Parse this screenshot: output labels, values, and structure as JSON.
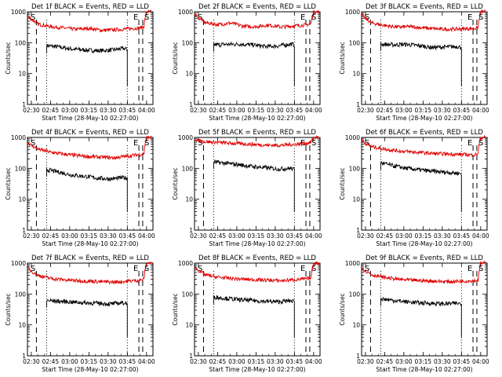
{
  "colors": {
    "events": "#000000",
    "lld": "#e00000",
    "axis": "#000000",
    "background": "#ffffff"
  },
  "chart_data": [
    {
      "type": "line",
      "title": "Det 1f BLACK = Events, RED = LLD",
      "xlabel": "Start Time (28-May-10 02:27:00)",
      "ylabel": "Counts/sec",
      "ylog": true,
      "ylim": [
        1,
        1000
      ],
      "xlim": [
        "02:27",
        "04:05"
      ],
      "xticks": [
        "02:30",
        "02:45",
        "03:00",
        "03:15",
        "03:30",
        "03:45",
        "04:00"
      ],
      "yticks": [
        "1",
        "10",
        "100",
        "1000"
      ],
      "marker_labels": [
        "S",
        "E",
        "S"
      ],
      "dashed_lines": [
        "02:34",
        "03:54",
        "03:57"
      ],
      "dotted_lines": [
        "02:42",
        "03:45"
      ],
      "series": [
        {
          "name": "BLACK = Events",
          "x": [
            "02:42",
            "02:52",
            "03:02",
            "03:12",
            "03:22",
            "03:32",
            "03:42",
            "03:45"
          ],
          "values": [
            80,
            72,
            62,
            58,
            55,
            57,
            65,
            60
          ]
        },
        {
          "name": "RED = LLD",
          "x": [
            "02:27",
            "02:30",
            "02:35",
            "02:45",
            "02:55",
            "03:05",
            "03:15",
            "03:25",
            "03:35",
            "03:45",
            "03:55",
            "03:58",
            "04:00",
            "04:04"
          ],
          "values": [
            700,
            580,
            400,
            330,
            300,
            270,
            290,
            250,
            260,
            280,
            300,
            330,
            1000,
            1000
          ]
        }
      ]
    },
    {
      "type": "line",
      "title": "Det 2f BLACK = Events, RED = LLD",
      "xlabel": "Start Time (28-May-10 02:27:00)",
      "ylabel": "Counts/sec",
      "ylog": true,
      "ylim": [
        1,
        1000
      ],
      "xlim": [
        "02:27",
        "04:05"
      ],
      "xticks": [
        "02:30",
        "02:45",
        "03:00",
        "03:15",
        "03:30",
        "03:45",
        "04:00"
      ],
      "yticks": [
        "1",
        "10",
        "100",
        "1000"
      ],
      "marker_labels": [
        "S",
        "E",
        "S"
      ],
      "dashed_lines": [
        "02:34",
        "03:54",
        "03:57"
      ],
      "dotted_lines": [
        "02:42",
        "03:45"
      ],
      "series": [
        {
          "name": "BLACK = Events",
          "x": [
            "02:42",
            "02:52",
            "03:02",
            "03:12",
            "03:22",
            "03:32",
            "03:42",
            "03:45"
          ],
          "values": [
            85,
            88,
            90,
            85,
            75,
            78,
            90,
            85
          ]
        },
        {
          "name": "RED = LLD",
          "x": [
            "02:27",
            "02:30",
            "02:35",
            "02:45",
            "02:55",
            "03:05",
            "03:15",
            "03:25",
            "03:35",
            "03:45",
            "03:55",
            "03:58",
            "04:00",
            "04:04"
          ],
          "values": [
            800,
            650,
            450,
            380,
            430,
            340,
            330,
            370,
            320,
            350,
            380,
            420,
            1000,
            1000
          ]
        }
      ]
    },
    {
      "type": "line",
      "title": "Det 3f BLACK = Events, RED = LLD",
      "xlabel": "Start Time (28-May-10 02:27:00)",
      "ylabel": "Counts/sec",
      "ylog": true,
      "ylim": [
        1,
        1000
      ],
      "xlim": [
        "02:27",
        "04:05"
      ],
      "xticks": [
        "02:30",
        "02:45",
        "03:00",
        "03:15",
        "03:30",
        "03:45",
        "04:00"
      ],
      "yticks": [
        "1",
        "10",
        "100",
        "1000"
      ],
      "marker_labels": [
        "S",
        "E",
        "S"
      ],
      "dashed_lines": [
        "02:34",
        "03:54",
        "03:57"
      ],
      "dotted_lines": [
        "02:42",
        "03:45"
      ],
      "series": [
        {
          "name": "BLACK = Events",
          "x": [
            "02:42",
            "02:52",
            "03:02",
            "03:12",
            "03:22",
            "03:32",
            "03:42",
            "03:45"
          ],
          "values": [
            90,
            85,
            88,
            80,
            70,
            72,
            75,
            70
          ]
        },
        {
          "name": "RED = LLD",
          "x": [
            "02:27",
            "02:30",
            "02:35",
            "02:45",
            "02:55",
            "03:05",
            "03:15",
            "03:25",
            "03:35",
            "03:45",
            "03:55",
            "03:58",
            "04:00",
            "04:04"
          ],
          "values": [
            800,
            600,
            430,
            360,
            320,
            330,
            300,
            280,
            270,
            280,
            290,
            300,
            1000,
            1000
          ]
        }
      ]
    },
    {
      "type": "line",
      "title": "Det 4f BLACK = Events, RED = LLD",
      "xlabel": "Start Time (28-May-10 02:27:00)",
      "ylabel": "Counts/sec",
      "ylog": true,
      "ylim": [
        1,
        1000
      ],
      "xlim": [
        "02:27",
        "04:05"
      ],
      "xticks": [
        "02:30",
        "02:45",
        "03:00",
        "03:15",
        "03:30",
        "03:45",
        "04:00"
      ],
      "yticks": [
        "1",
        "10",
        "100",
        "1000"
      ],
      "marker_labels": [
        "S",
        "E",
        "S"
      ],
      "dashed_lines": [
        "02:34",
        "03:54",
        "03:57"
      ],
      "dotted_lines": [
        "02:42",
        "03:45"
      ],
      "series": [
        {
          "name": "BLACK = Events",
          "x": [
            "02:42",
            "02:52",
            "03:02",
            "03:12",
            "03:22",
            "03:32",
            "03:42",
            "03:45"
          ],
          "values": [
            90,
            75,
            60,
            55,
            48,
            45,
            50,
            48
          ]
        },
        {
          "name": "RED = LLD",
          "x": [
            "02:27",
            "02:30",
            "02:35",
            "02:45",
            "02:55",
            "03:05",
            "03:15",
            "03:25",
            "03:35",
            "03:45",
            "03:55",
            "03:58",
            "04:00",
            "04:04"
          ],
          "values": [
            700,
            550,
            420,
            330,
            290,
            260,
            240,
            230,
            220,
            250,
            280,
            300,
            1000,
            1000
          ]
        }
      ]
    },
    {
      "type": "line",
      "title": "Det 5f BLACK = Events, RED = LLD",
      "xlabel": "Start Time (28-May-10 02:27:00)",
      "ylabel": "Counts/sec",
      "ylog": true,
      "ylim": [
        1,
        1000
      ],
      "xlim": [
        "02:27",
        "04:05"
      ],
      "xticks": [
        "02:30",
        "02:45",
        "03:00",
        "03:15",
        "03:30",
        "03:45",
        "04:00"
      ],
      "yticks": [
        "1",
        "10",
        "100",
        "1000"
      ],
      "marker_labels": [
        "S",
        "E",
        "S"
      ],
      "dashed_lines": [
        "02:34",
        "03:54",
        "03:57"
      ],
      "dotted_lines": [
        "02:42",
        "03:45"
      ],
      "series": [
        {
          "name": "BLACK = Events",
          "x": [
            "02:42",
            "02:52",
            "03:02",
            "03:12",
            "03:22",
            "03:32",
            "03:42",
            "03:45"
          ],
          "values": [
            160,
            145,
            130,
            115,
            105,
            95,
            100,
            90
          ]
        },
        {
          "name": "RED = LLD",
          "x": [
            "02:27",
            "02:30",
            "02:35",
            "02:45",
            "02:55",
            "03:05",
            "03:15",
            "03:25",
            "03:35",
            "03:45",
            "03:55",
            "03:58",
            "04:00",
            "04:04"
          ],
          "values": [
            900,
            800,
            730,
            690,
            650,
            620,
            590,
            560,
            560,
            600,
            650,
            700,
            1000,
            1000
          ]
        }
      ]
    },
    {
      "type": "line",
      "title": "Det 6f BLACK = Events, RED = LLD",
      "xlabel": "Start Time (28-May-10 02:27:00)",
      "ylabel": "Counts/sec",
      "ylog": true,
      "ylim": [
        1,
        1000
      ],
      "xlim": [
        "02:27",
        "04:05"
      ],
      "xticks": [
        "02:30",
        "02:45",
        "03:00",
        "03:15",
        "03:30",
        "03:45",
        "04:00"
      ],
      "yticks": [
        "1",
        "10",
        "100",
        "1000"
      ],
      "marker_labels": [
        "S",
        "E",
        "S"
      ],
      "dashed_lines": [
        "02:34",
        "03:54",
        "03:57"
      ],
      "dotted_lines": [
        "02:42",
        "03:45"
      ],
      "series": [
        {
          "name": "BLACK = Events",
          "x": [
            "02:42",
            "02:52",
            "03:02",
            "03:12",
            "03:22",
            "03:32",
            "03:42",
            "03:45"
          ],
          "values": [
            150,
            120,
            100,
            90,
            80,
            75,
            70,
            68
          ]
        },
        {
          "name": "RED = LLD",
          "x": [
            "02:27",
            "02:30",
            "02:35",
            "02:45",
            "02:55",
            "03:05",
            "03:15",
            "03:25",
            "03:35",
            "03:45",
            "03:55",
            "03:58",
            "04:00",
            "04:04"
          ],
          "values": [
            800,
            650,
            500,
            420,
            370,
            340,
            320,
            300,
            290,
            280,
            270,
            300,
            1000,
            1000
          ]
        }
      ]
    },
    {
      "type": "line",
      "title": "Det 7f BLACK = Events, RED = LLD",
      "xlabel": "Start Time (28-May-10 02:27:00)",
      "ylabel": "Counts/sec",
      "ylog": true,
      "ylim": [
        1,
        1000
      ],
      "xlim": [
        "02:27",
        "04:05"
      ],
      "xticks": [
        "02:30",
        "02:45",
        "03:00",
        "03:15",
        "03:30",
        "03:45",
        "04:00"
      ],
      "yticks": [
        "1",
        "10",
        "100",
        "1000"
      ],
      "marker_labels": [
        "S",
        "E",
        "S"
      ],
      "dashed_lines": [
        "02:34",
        "03:54",
        "03:57"
      ],
      "dotted_lines": [
        "02:42",
        "03:45"
      ],
      "series": [
        {
          "name": "BLACK = Events",
          "x": [
            "02:42",
            "02:52",
            "03:02",
            "03:12",
            "03:22",
            "03:32",
            "03:42",
            "03:45"
          ],
          "values": [
            62,
            58,
            55,
            52,
            50,
            48,
            52,
            50
          ]
        },
        {
          "name": "RED = LLD",
          "x": [
            "02:27",
            "02:30",
            "02:35",
            "02:45",
            "02:55",
            "03:05",
            "03:15",
            "03:25",
            "03:35",
            "03:45",
            "03:55",
            "03:58",
            "04:00",
            "04:04"
          ],
          "values": [
            700,
            550,
            400,
            320,
            290,
            270,
            260,
            250,
            240,
            260,
            280,
            300,
            1000,
            1000
          ]
        }
      ]
    },
    {
      "type": "line",
      "title": "Det 8f BLACK = Events, RED = LLD",
      "xlabel": "Start Time (28-May-10 02:27:00)",
      "ylabel": "Counts/sec",
      "ylog": true,
      "ylim": [
        1,
        1000
      ],
      "xlim": [
        "02:27",
        "04:05"
      ],
      "xticks": [
        "02:30",
        "02:45",
        "03:00",
        "03:15",
        "03:30",
        "03:45",
        "04:00"
      ],
      "yticks": [
        "1",
        "10",
        "100",
        "1000"
      ],
      "marker_labels": [
        "S",
        "E",
        "S"
      ],
      "dashed_lines": [
        "02:34",
        "03:54",
        "03:57"
      ],
      "dotted_lines": [
        "02:42",
        "03:45"
      ],
      "series": [
        {
          "name": "BLACK = Events",
          "x": [
            "02:42",
            "02:52",
            "03:02",
            "03:12",
            "03:22",
            "03:32",
            "03:42",
            "03:45"
          ],
          "values": [
            80,
            72,
            65,
            62,
            58,
            56,
            60,
            58
          ]
        },
        {
          "name": "RED = LLD",
          "x": [
            "02:27",
            "02:30",
            "02:35",
            "02:45",
            "02:55",
            "03:05",
            "03:15",
            "03:25",
            "03:35",
            "03:45",
            "03:55",
            "03:58",
            "04:00",
            "04:04"
          ],
          "values": [
            750,
            580,
            420,
            350,
            320,
            300,
            290,
            280,
            270,
            290,
            310,
            330,
            1000,
            1000
          ]
        }
      ]
    },
    {
      "type": "line",
      "title": "Det 9f BLACK = Events, RED = LLD",
      "xlabel": "Start Time (28-May-10 02:27:00)",
      "ylabel": "Counts/sec",
      "ylog": true,
      "ylim": [
        1,
        1000
      ],
      "xlim": [
        "02:27",
        "04:05"
      ],
      "xticks": [
        "02:30",
        "02:45",
        "03:00",
        "03:15",
        "03:30",
        "03:45",
        "04:00"
      ],
      "yticks": [
        "1",
        "10",
        "100",
        "1000"
      ],
      "marker_labels": [
        "S",
        "E",
        "S"
      ],
      "dashed_lines": [
        "02:34",
        "03:54",
        "03:57"
      ],
      "dotted_lines": [
        "02:42",
        "03:45"
      ],
      "series": [
        {
          "name": "BLACK = Events",
          "x": [
            "02:42",
            "02:52",
            "03:02",
            "03:12",
            "03:22",
            "03:32",
            "03:42",
            "03:45"
          ],
          "values": [
            70,
            62,
            56,
            52,
            50,
            48,
            50,
            48
          ]
        },
        {
          "name": "RED = LLD",
          "x": [
            "02:27",
            "02:30",
            "02:35",
            "02:45",
            "02:55",
            "03:05",
            "03:15",
            "03:25",
            "03:35",
            "03:45",
            "03:55",
            "03:58",
            "04:00",
            "04:04"
          ],
          "values": [
            700,
            560,
            420,
            340,
            300,
            280,
            270,
            260,
            250,
            260,
            270,
            280,
            1000,
            1000
          ]
        }
      ]
    }
  ]
}
